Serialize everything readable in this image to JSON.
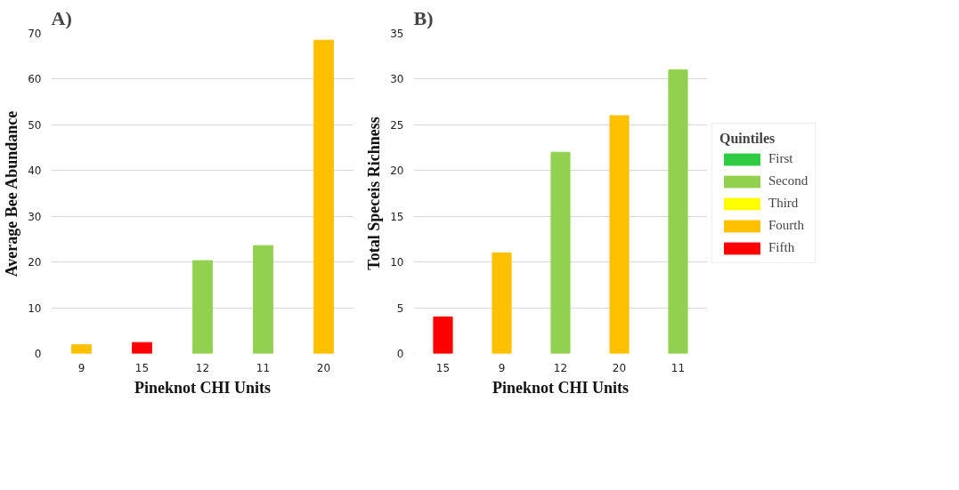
{
  "chart_data": [
    {
      "type": "bar",
      "title": "A)",
      "xlabel": "Pineknot CHI Units",
      "ylabel": "Average Bee Abundance",
      "categories": [
        "9",
        "15",
        "12",
        "11",
        "20"
      ],
      "stacked": true,
      "ylim": [
        0,
        70
      ],
      "yticks": [
        0,
        10,
        20,
        30,
        40,
        50,
        60,
        70
      ],
      "grid": "y",
      "series": [
        {
          "color": "#92d050",
          "values": [
            null,
            null,
            20.3,
            23.6,
            null
          ]
        },
        {
          "color": "#ffc000",
          "values": [
            1.9,
            null,
            null,
            null,
            68.5
          ]
        },
        {
          "color": "#ff0000",
          "values": [
            null,
            2.4,
            null,
            null,
            null
          ]
        }
      ]
    },
    {
      "type": "bar",
      "title": "B)",
      "xlabel": "Pineknot CHI Units",
      "ylabel": "Total Speceis Richness",
      "categories": [
        "15",
        "9",
        "12",
        "20",
        "11"
      ],
      "stacked": true,
      "ylim": [
        0,
        35
      ],
      "yticks": [
        0,
        5,
        10,
        15,
        20,
        25,
        30,
        35
      ],
      "grid": "y",
      "legend": "right",
      "legend_title": "Quintiles",
      "series": [
        {
          "name": "First",
          "color": "#2ecc40",
          "values": [
            null,
            null,
            null,
            null,
            null
          ]
        },
        {
          "name": "Second",
          "color": "#92d050",
          "values": [
            null,
            null,
            22,
            null,
            31
          ]
        },
        {
          "name": "Third",
          "color": "#ffff00",
          "values": [
            null,
            null,
            null,
            null,
            null
          ]
        },
        {
          "name": "Fourth",
          "color": "#ffc000",
          "values": [
            null,
            11,
            null,
            26,
            null
          ]
        },
        {
          "name": "Fifth",
          "color": "#ff0000",
          "values": [
            4,
            null,
            null,
            null,
            null
          ]
        }
      ]
    }
  ]
}
